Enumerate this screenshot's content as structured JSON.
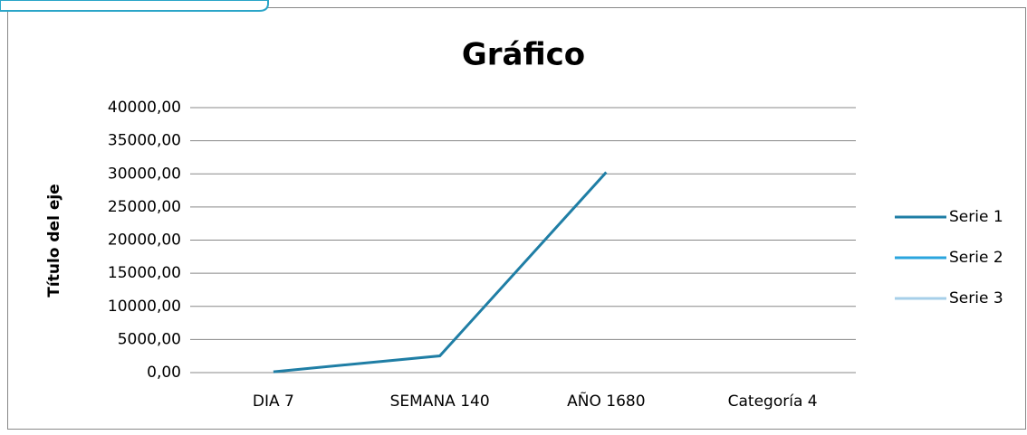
{
  "chart_data": {
    "type": "line",
    "title": "Gráfico",
    "y_label": "Título del eje",
    "categories": [
      "DIA 7",
      "SEMANA 140",
      "AÑO 1680",
      "Categoría 4"
    ],
    "series": [
      {
        "name": "Serie 1",
        "color": "#1f7ea5",
        "values": [
          126,
          2520,
          30240,
          null
        ]
      },
      {
        "name": "Serie 2",
        "color": "#2aa5de",
        "values": [
          null,
          null,
          null,
          null
        ]
      },
      {
        "name": "Serie 3",
        "color": "#a6cfe9",
        "values": [
          null,
          null,
          null,
          null
        ]
      }
    ],
    "ylim": [
      0,
      40000
    ],
    "yticks": [
      {
        "value": 0,
        "label": "0,00"
      },
      {
        "value": 5000,
        "label": "5000,00"
      },
      {
        "value": 10000,
        "label": "10000,00"
      },
      {
        "value": 15000,
        "label": "15000,00"
      },
      {
        "value": 20000,
        "label": "20000,00"
      },
      {
        "value": 25000,
        "label": "25000,00"
      },
      {
        "value": 30000,
        "label": "30000,00"
      },
      {
        "value": 35000,
        "label": "35000,00"
      },
      {
        "value": 40000,
        "label": "40000,00"
      }
    ],
    "grid": true,
    "legend": "right"
  }
}
